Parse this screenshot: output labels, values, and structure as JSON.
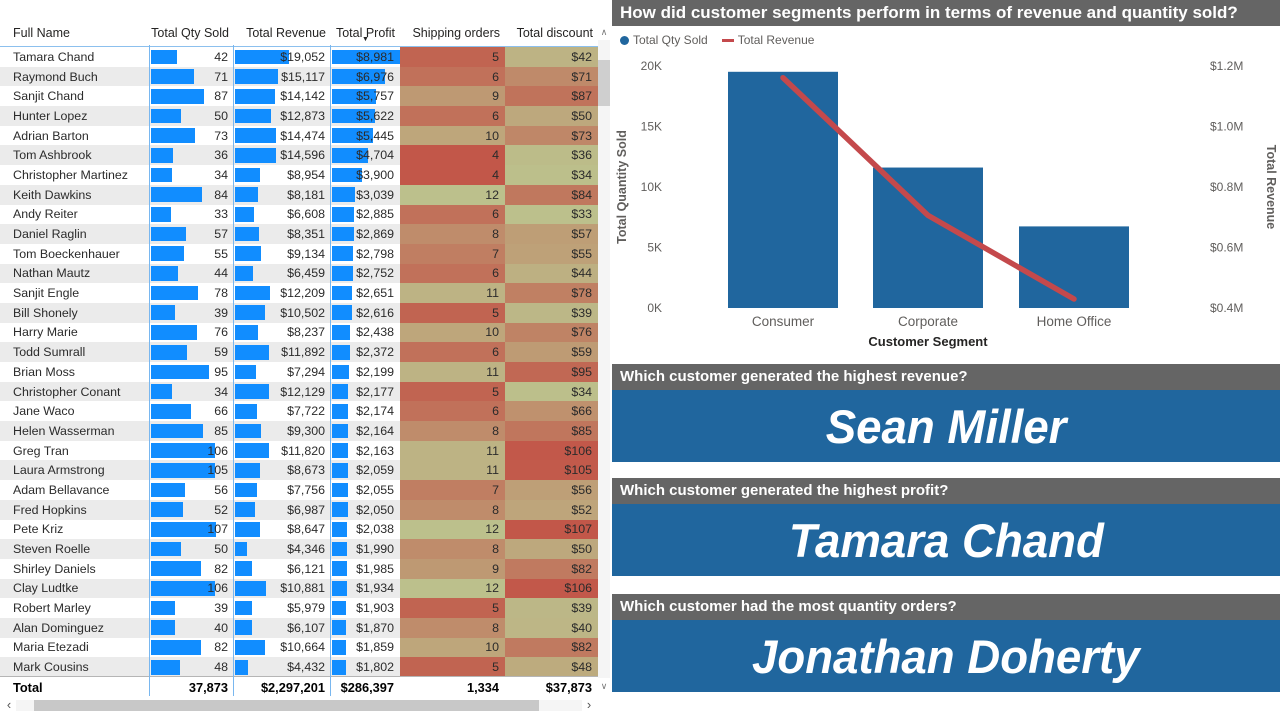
{
  "table": {
    "columns": [
      "Full Name",
      "Total Qty Sold",
      "Total Revenue",
      "Total Profit",
      "Shipping orders",
      "Total discount"
    ],
    "sort_column": "Total Profit",
    "sort_icon": "▼",
    "bar_color": "#118DFF",
    "bar_max": {
      "qty": 107,
      "revenue": 19052,
      "profit": 8981
    },
    "heat": {
      "low_color": "#C25749",
      "high_color": "#BCC08C",
      "shipping_min": 4,
      "shipping_max": 12,
      "discount_min": 33,
      "discount_max": 107
    },
    "rows": [
      {
        "name": "Tamara Chand",
        "qty": 42,
        "revenue": 19052,
        "profit": 8981,
        "shipping": 5,
        "discount": 42
      },
      {
        "name": "Raymond Buch",
        "qty": 71,
        "revenue": 15117,
        "profit": 6976,
        "shipping": 6,
        "discount": 71
      },
      {
        "name": "Sanjit Chand",
        "qty": 87,
        "revenue": 14142,
        "profit": 5757,
        "shipping": 9,
        "discount": 87
      },
      {
        "name": "Hunter Lopez",
        "qty": 50,
        "revenue": 12873,
        "profit": 5622,
        "shipping": 6,
        "discount": 50
      },
      {
        "name": "Adrian Barton",
        "qty": 73,
        "revenue": 14474,
        "profit": 5445,
        "shipping": 10,
        "discount": 73
      },
      {
        "name": "Tom Ashbrook",
        "qty": 36,
        "revenue": 14596,
        "profit": 4704,
        "shipping": 4,
        "discount": 36
      },
      {
        "name": "Christopher Martinez",
        "qty": 34,
        "revenue": 8954,
        "profit": 3900,
        "shipping": 4,
        "discount": 34
      },
      {
        "name": "Keith Dawkins",
        "qty": 84,
        "revenue": 8181,
        "profit": 3039,
        "shipping": 12,
        "discount": 84
      },
      {
        "name": "Andy Reiter",
        "qty": 33,
        "revenue": 6608,
        "profit": 2885,
        "shipping": 6,
        "discount": 33
      },
      {
        "name": "Daniel Raglin",
        "qty": 57,
        "revenue": 8351,
        "profit": 2869,
        "shipping": 8,
        "discount": 57
      },
      {
        "name": "Tom Boeckenhauer",
        "qty": 55,
        "revenue": 9134,
        "profit": 2798,
        "shipping": 7,
        "discount": 55
      },
      {
        "name": "Nathan Mautz",
        "qty": 44,
        "revenue": 6459,
        "profit": 2752,
        "shipping": 6,
        "discount": 44
      },
      {
        "name": "Sanjit Engle",
        "qty": 78,
        "revenue": 12209,
        "profit": 2651,
        "shipping": 11,
        "discount": 78
      },
      {
        "name": "Bill Shonely",
        "qty": 39,
        "revenue": 10502,
        "profit": 2616,
        "shipping": 5,
        "discount": 39
      },
      {
        "name": "Harry Marie",
        "qty": 76,
        "revenue": 8237,
        "profit": 2438,
        "shipping": 10,
        "discount": 76
      },
      {
        "name": "Todd Sumrall",
        "qty": 59,
        "revenue": 11892,
        "profit": 2372,
        "shipping": 6,
        "discount": 59
      },
      {
        "name": "Brian Moss",
        "qty": 95,
        "revenue": 7294,
        "profit": 2199,
        "shipping": 11,
        "discount": 95
      },
      {
        "name": "Christopher Conant",
        "qty": 34,
        "revenue": 12129,
        "profit": 2177,
        "shipping": 5,
        "discount": 34
      },
      {
        "name": "Jane Waco",
        "qty": 66,
        "revenue": 7722,
        "profit": 2174,
        "shipping": 6,
        "discount": 66
      },
      {
        "name": "Helen Wasserman",
        "qty": 85,
        "revenue": 9300,
        "profit": 2164,
        "shipping": 8,
        "discount": 85
      },
      {
        "name": "Greg Tran",
        "qty": 106,
        "revenue": 11820,
        "profit": 2163,
        "shipping": 11,
        "discount": 106
      },
      {
        "name": "Laura Armstrong",
        "qty": 105,
        "revenue": 8673,
        "profit": 2059,
        "shipping": 11,
        "discount": 105
      },
      {
        "name": "Adam Bellavance",
        "qty": 56,
        "revenue": 7756,
        "profit": 2055,
        "shipping": 7,
        "discount": 56
      },
      {
        "name": "Fred Hopkins",
        "qty": 52,
        "revenue": 6987,
        "profit": 2050,
        "shipping": 8,
        "discount": 52
      },
      {
        "name": "Pete Kriz",
        "qty": 107,
        "revenue": 8647,
        "profit": 2038,
        "shipping": 12,
        "discount": 107
      },
      {
        "name": "Steven Roelle",
        "qty": 50,
        "revenue": 4346,
        "profit": 1990,
        "shipping": 8,
        "discount": 50
      },
      {
        "name": "Shirley Daniels",
        "qty": 82,
        "revenue": 6121,
        "profit": 1985,
        "shipping": 9,
        "discount": 82
      },
      {
        "name": "Clay Ludtke",
        "qty": 106,
        "revenue": 10881,
        "profit": 1934,
        "shipping": 12,
        "discount": 106
      },
      {
        "name": "Robert Marley",
        "qty": 39,
        "revenue": 5979,
        "profit": 1903,
        "shipping": 5,
        "discount": 39
      },
      {
        "name": "Alan Dominguez",
        "qty": 40,
        "revenue": 6107,
        "profit": 1870,
        "shipping": 8,
        "discount": 40
      },
      {
        "name": "Maria Etezadi",
        "qty": 82,
        "revenue": 10664,
        "profit": 1859,
        "shipping": 10,
        "discount": 82
      },
      {
        "name": "Mark Cousins",
        "qty": 48,
        "revenue": 4432,
        "profit": 1802,
        "shipping": 5,
        "discount": 48
      }
    ],
    "total": {
      "name": "Total",
      "qty": 37873,
      "revenue": 2297201,
      "profit": 286397,
      "shipping": 1334,
      "discount": 37873
    },
    "scrollbar": {
      "up_icon": "∧",
      "down_icon": "∨",
      "left_icon": "‹",
      "right_icon": "›"
    }
  },
  "chart_data": {
    "type": "combo_bar_line",
    "title": "How did customer segments perform in terms of revenue and quantity sold?",
    "categories": [
      "Consumer",
      "Corporate",
      "Home Office"
    ],
    "series": [
      {
        "name": "Total Qty Sold",
        "type": "bar",
        "axis": "left",
        "color": "#20669E",
        "values": [
          19521,
          11608,
          6744
        ]
      },
      {
        "name": "Total Revenue",
        "type": "line",
        "axis": "right",
        "color": "#C4494C",
        "values": [
          1161401,
          706146,
          429654
        ]
      }
    ],
    "xlabel": "Customer Segment",
    "left_axis": {
      "label": "Total Quantity Sold",
      "min": 0,
      "max": 20000,
      "ticks": [
        "20K",
        "15K",
        "10K",
        "5K",
        "0K"
      ]
    },
    "right_axis": {
      "label": "Total Revenue",
      "min": 400000,
      "max": 1200000,
      "ticks": [
        "$1.2M",
        "$1.0M",
        "$0.8M",
        "$0.6M",
        "$0.4M"
      ]
    },
    "legend_position": "top-left",
    "grid": false
  },
  "cards": [
    {
      "question": "Which customer generated the highest revenue?",
      "answer": "Sean Miller"
    },
    {
      "question": "Which customer generated the highest profit?",
      "answer": "Tamara Chand"
    },
    {
      "question": "Which customer had the most quantity orders?",
      "answer": "Jonathan Doherty"
    }
  ],
  "colors": {
    "card_blue": "#20669E",
    "header_gray": "#656565",
    "heat_low": "#C25749",
    "heat_high": "#BCC08C",
    "databar_blue": "#118DFF",
    "line_red": "#C4494C"
  }
}
